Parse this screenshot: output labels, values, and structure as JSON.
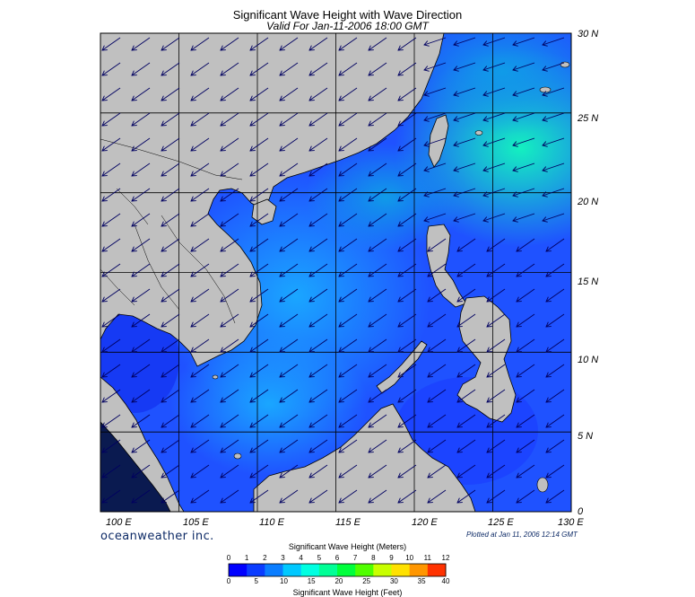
{
  "title": "Significant Wave Height with Wave Direction",
  "subtitle": "Valid For Jan-11-2006 18:00 GMT",
  "lat_labels": [
    "30 N",
    "25 N",
    "20 N",
    "15 N",
    "10 N",
    "5 N",
    "0"
  ],
  "lon_labels": [
    "100 E",
    "105 E",
    "110 E",
    "115 E",
    "120 E",
    "125 E",
    "130 E"
  ],
  "branding": "oceanweather inc.",
  "plotted": "Plotted at Jan 11, 2006 12:14 GMT",
  "colorbar": {
    "title_meters": "Significant Wave Height (Meters)",
    "title_feet": "Significant Wave Height (Feet)",
    "meter_ticks": [
      "0",
      "1",
      "2",
      "3",
      "4",
      "5",
      "6",
      "7",
      "8",
      "9",
      "10",
      "11",
      "12"
    ],
    "feet_ticks": [
      "0",
      "5",
      "10",
      "15",
      "20",
      "25",
      "30",
      "35",
      "40"
    ],
    "colors": [
      "#0000ff",
      "#0a3cff",
      "#0a7dff",
      "#00c8ff",
      "#00ffe1",
      "#00ff96",
      "#00ff3c",
      "#50ff00",
      "#c8ff00",
      "#ffe100",
      "#ff9600",
      "#ff3200"
    ]
  },
  "colors": {
    "land": "#c0c0c0",
    "sea_deep": "#1f3cff",
    "sea_mid": "#1f74ff",
    "sea_high": "#0fc9e6",
    "sea_max": "#14f0c0",
    "arrow": "#000050"
  }
}
